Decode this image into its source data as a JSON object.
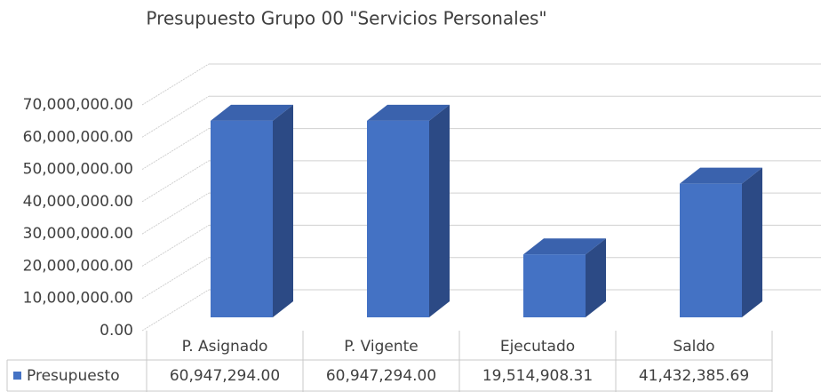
{
  "chart_data": {
    "type": "bar3d",
    "title": "Presupuesto Grupo 00 \"Servicios Personales\"",
    "categories": [
      "P. Asignado",
      "P. Vigente",
      "Ejecutado",
      "Saldo"
    ],
    "series": [
      {
        "name": "Presupuesto",
        "color": "#4472c4",
        "values": [
          60947294.0,
          60947294.0,
          19514908.31,
          41432385.69
        ],
        "value_labels": [
          "60,947,294.00",
          "60,947,294.00",
          "19,514,908.31",
          "41,432,385.69"
        ]
      }
    ],
    "ylim": [
      0,
      70000000
    ],
    "yticks": [
      {
        "value": 0,
        "label": "0.00"
      },
      {
        "value": 10000000,
        "label": "10,000,000.00"
      },
      {
        "value": 20000000,
        "label": "20,000,000.00"
      },
      {
        "value": 30000000,
        "label": "30,000,000.00"
      },
      {
        "value": 40000000,
        "label": "40,000,000.00"
      },
      {
        "value": 50000000,
        "label": "50,000,000.00"
      },
      {
        "value": 60000000,
        "label": "60,000,000.00"
      },
      {
        "value": 70000000,
        "label": "70,000,000.00"
      }
    ],
    "grid": true,
    "data_table": true
  }
}
